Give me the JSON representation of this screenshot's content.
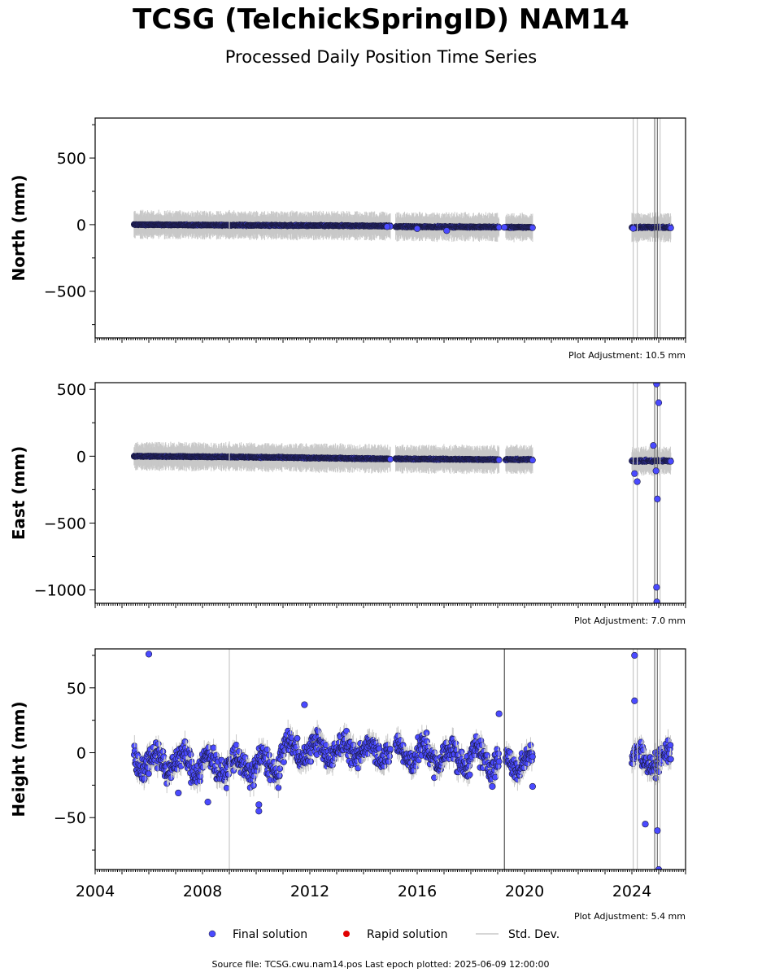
{
  "title": "TCSG (TelchickSpringID) NAM14",
  "subtitle": "Processed Daily Position Time Series",
  "source_line": "Source file: TCSG.cwu.nam14.pos  Last epoch plotted: 2025-06-09 12:00:00",
  "legend": {
    "final": "Final solution",
    "rapid": "Rapid solution",
    "stddev": "Std. Dev."
  },
  "colors": {
    "final": "#4a4aff",
    "rapid": "#e00000",
    "stddev": "#c8c8c8"
  },
  "chart_data": [
    {
      "type": "scatter",
      "ylabel": "North (mm)",
      "xlim": [
        2004,
        2026
      ],
      "ylim": [
        -850,
        800
      ],
      "yticks": [
        -500,
        0,
        500
      ],
      "adjustment": "Plot Adjustment: 10.5 mm",
      "segments": [
        {
          "x0": 2005.45,
          "x1": 2009.0,
          "y0": 0,
          "y1": -4,
          "noise": 4
        },
        {
          "x0": 2009.0,
          "x1": 2015.0,
          "y0": -4,
          "y1": -10,
          "noise": 5
        },
        {
          "x0": 2015.2,
          "x1": 2019.05,
          "y0": -15,
          "y1": -18,
          "noise": 5
        },
        {
          "x0": 2019.3,
          "x1": 2019.9,
          "y0": -20,
          "y1": -20,
          "noise": 6
        },
        {
          "x0": 2019.9,
          "x1": 2020.3,
          "y0": -20,
          "y1": -20,
          "noise": 5
        },
        {
          "x0": 2024.0,
          "x1": 2025.45,
          "y0": -20,
          "y1": -20,
          "noise": 7
        }
      ],
      "outliers": [
        {
          "x": 2016.0,
          "y": -30
        },
        {
          "x": 2017.1,
          "y": -45
        },
        {
          "x": 2019.25,
          "y": -20
        },
        {
          "x": 2014.88,
          "y": -15
        },
        {
          "x": 2024.05,
          "y": -28
        }
      ]
    },
    {
      "type": "scatter",
      "ylabel": "East (mm)",
      "xlim": [
        2004,
        2026
      ],
      "ylim": [
        -1100,
        550
      ],
      "yticks": [
        -1000,
        -500,
        0,
        500
      ],
      "adjustment": "Plot Adjustment: 7.0 mm",
      "segments": [
        {
          "x0": 2005.45,
          "x1": 2009.0,
          "y0": 0,
          "y1": -5,
          "noise": 4
        },
        {
          "x0": 2009.0,
          "x1": 2015.0,
          "y0": -5,
          "y1": -20,
          "noise": 5
        },
        {
          "x0": 2015.2,
          "x1": 2019.05,
          "y0": -20,
          "y1": -25,
          "noise": 5
        },
        {
          "x0": 2019.3,
          "x1": 2019.9,
          "y0": -25,
          "y1": -25,
          "noise": 6
        },
        {
          "x0": 2019.9,
          "x1": 2020.3,
          "y0": -25,
          "y1": -25,
          "noise": 5
        },
        {
          "x0": 2024.0,
          "x1": 2025.45,
          "y0": -35,
          "y1": -35,
          "noise": 8
        }
      ],
      "outliers": [
        {
          "x": 2024.1,
          "y": -130
        },
        {
          "x": 2024.2,
          "y": -190
        },
        {
          "x": 2024.8,
          "y": 80
        },
        {
          "x": 2024.92,
          "y": 540
        },
        {
          "x": 2025.0,
          "y": 400
        },
        {
          "x": 2024.95,
          "y": -320
        },
        {
          "x": 2024.92,
          "y": -980
        },
        {
          "x": 2024.93,
          "y": -1090
        },
        {
          "x": 2024.9,
          "y": -110
        }
      ]
    },
    {
      "type": "scatter",
      "ylabel": "Height (mm)",
      "xlim": [
        2004,
        2026
      ],
      "ylim": [
        -90,
        80
      ],
      "yticks": [
        -50,
        0,
        50
      ],
      "xticks": [
        2004,
        2008,
        2012,
        2016,
        2020,
        2024
      ],
      "adjustment": "Plot Adjustment: 5.4 mm",
      "segments": [
        {
          "x0": 2005.45,
          "x1": 2009.0,
          "y0": -5,
          "y1": -10,
          "noise": 12
        },
        {
          "x0": 2009.0,
          "x1": 2010.9,
          "y0": -10,
          "y1": -10,
          "noise": 12
        },
        {
          "x0": 2010.9,
          "x1": 2015.0,
          "y0": 2,
          "y1": 2,
          "noise": 11
        },
        {
          "x0": 2015.2,
          "x1": 2019.05,
          "y0": 0,
          "y1": -6,
          "noise": 12
        },
        {
          "x0": 2019.3,
          "x1": 2019.9,
          "y0": -8,
          "y1": -8,
          "noise": 10
        },
        {
          "x0": 2019.9,
          "x1": 2020.3,
          "y0": -5,
          "y1": -5,
          "noise": 10
        },
        {
          "x0": 2024.0,
          "x1": 2025.45,
          "y0": -5,
          "y1": -5,
          "noise": 10
        }
      ],
      "outliers": [
        {
          "x": 2006.0,
          "y": 76
        },
        {
          "x": 2011.8,
          "y": 37
        },
        {
          "x": 2008.2,
          "y": -38
        },
        {
          "x": 2010.1,
          "y": -45
        },
        {
          "x": 2010.1,
          "y": -40
        },
        {
          "x": 2007.1,
          "y": -31
        },
        {
          "x": 2019.05,
          "y": 30
        },
        {
          "x": 2024.1,
          "y": 75
        },
        {
          "x": 2024.1,
          "y": 40
        },
        {
          "x": 2024.5,
          "y": -55
        },
        {
          "x": 2024.95,
          "y": -60
        },
        {
          "x": 2025.0,
          "y": -90
        },
        {
          "x": 2020.3,
          "y": -26
        },
        {
          "x": 2018.8,
          "y": -26
        }
      ]
    }
  ]
}
